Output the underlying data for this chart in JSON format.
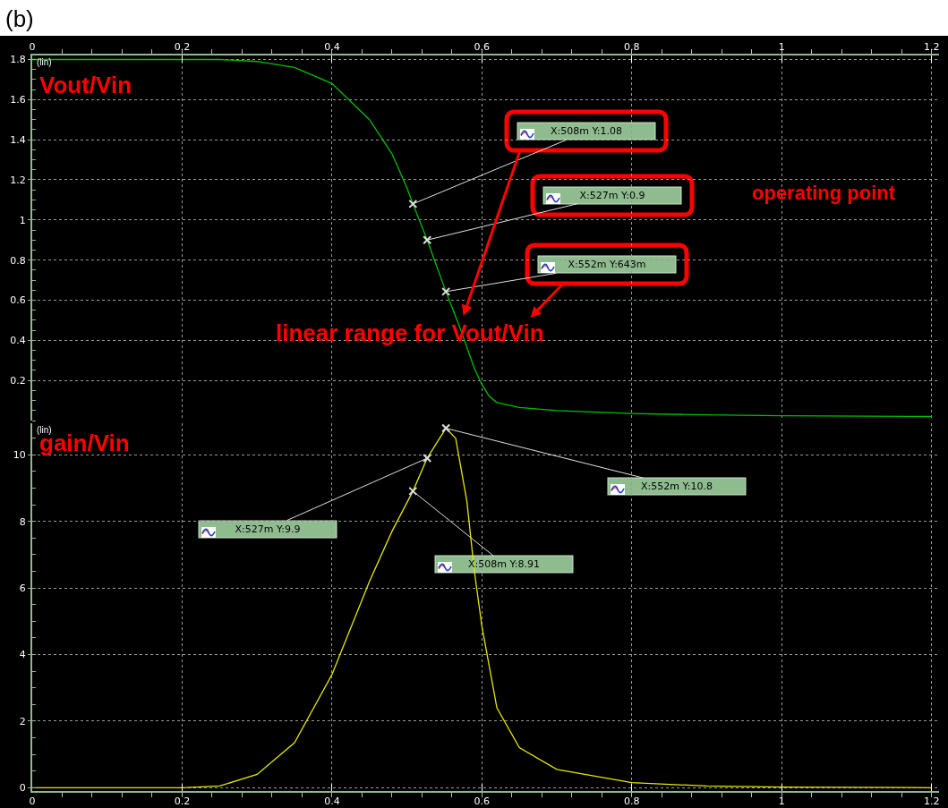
{
  "chart_data": [
    {
      "type": "line",
      "title": "(b)",
      "xlim": [
        0,
        1.21
      ],
      "xticks": [
        0,
        0.2,
        0.4,
        0.6,
        0.8,
        1,
        1.2
      ],
      "ylim": [
        0,
        1.82
      ],
      "yticks": [
        0.2,
        0.4,
        0.6,
        0.8,
        1,
        1.2,
        1.4,
        1.6,
        1.8
      ],
      "grid": true,
      "marker": "none",
      "line_style": "solid",
      "series": [
        {
          "color": "#00c000",
          "x": [
            0,
            0.1,
            0.2,
            0.25,
            0.3,
            0.35,
            0.4,
            0.45,
            0.48,
            0.5,
            0.508,
            0.527,
            0.552,
            0.57,
            0.59,
            0.6,
            0.61,
            0.62,
            0.65,
            0.7,
            0.8,
            0.9,
            1.0,
            1.2
          ],
          "values": [
            1.8,
            1.8,
            1.8,
            1.8,
            1.79,
            1.76,
            1.68,
            1.5,
            1.33,
            1.16,
            1.08,
            0.9,
            0.643,
            0.47,
            0.26,
            0.18,
            0.12,
            0.09,
            0.065,
            0.05,
            0.035,
            0.028,
            0.024,
            0.02
          ]
        }
      ],
      "annotations": [
        "(lin)",
        "Vout/Vin",
        "operating point",
        "linear range for Vout/Vin",
        {
          "text": "X:508m Y:1.08",
          "x": 0.508,
          "y": 1.08
        },
        {
          "text": "X:527m Y:0.9",
          "x": 0.527,
          "y": 0.9
        },
        {
          "text": "X:552m Y:643m",
          "x": 0.552,
          "y": 0.643
        }
      ]
    },
    {
      "type": "line",
      "xlim": [
        0,
        1.21
      ],
      "xticks": [
        0,
        0.2,
        0.4,
        0.6,
        0.8,
        1,
        1.2
      ],
      "ylim": [
        -0.1,
        10.95
      ],
      "yticks": [
        0,
        2,
        4,
        6,
        8,
        10
      ],
      "grid": true,
      "marker": "none",
      "line_style": "solid",
      "series": [
        {
          "color": "#e6e600",
          "x": [
            0,
            0.2,
            0.25,
            0.3,
            0.35,
            0.4,
            0.45,
            0.48,
            0.508,
            0.527,
            0.552,
            0.565,
            0.58,
            0.59,
            0.6,
            0.62,
            0.65,
            0.7,
            0.8,
            0.9,
            1.0,
            1.2
          ],
          "values": [
            0,
            0,
            0.05,
            0.4,
            1.35,
            3.4,
            6.2,
            7.7,
            8.91,
            9.9,
            10.8,
            10.5,
            8.6,
            6.5,
            4.85,
            2.4,
            1.2,
            0.55,
            0.15,
            0.05,
            0.02,
            0
          ]
        }
      ],
      "annotations": [
        "(lin)",
        "gain/Vin",
        {
          "text": "X:527m Y:9.9",
          "x": 0.527,
          "y": 9.9
        },
        {
          "text": "X:508m Y:8.91",
          "x": 0.508,
          "y": 8.91
        },
        {
          "text": "X:552m Y:10.8",
          "x": 0.552,
          "y": 10.8
        }
      ]
    }
  ]
}
